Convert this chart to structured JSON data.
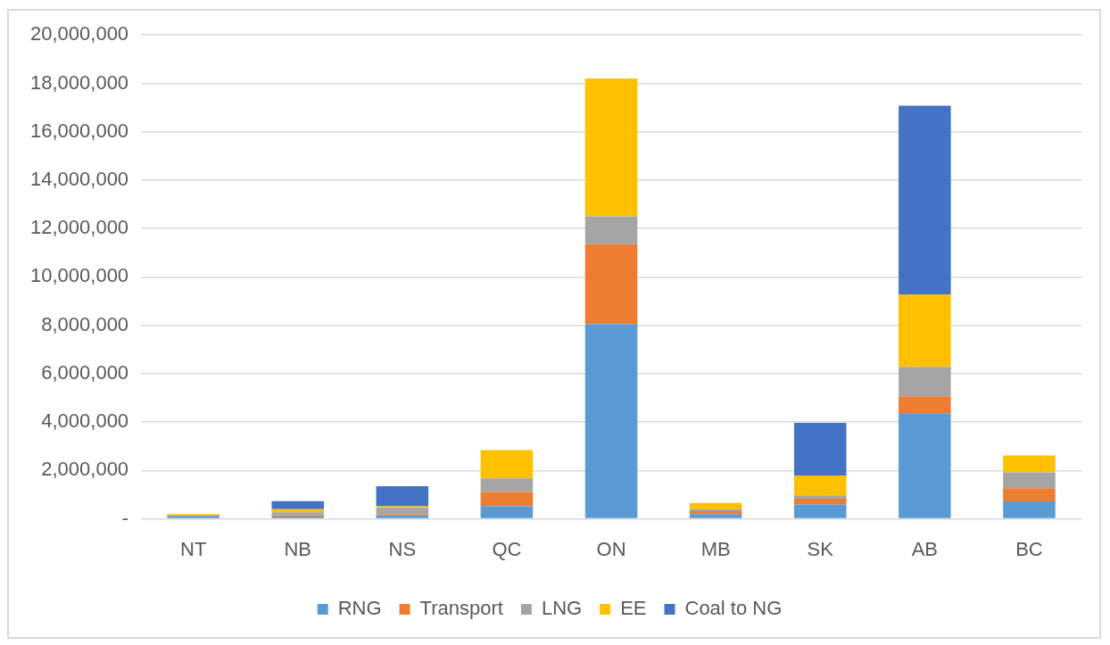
{
  "chart_data": {
    "type": "bar",
    "stacked": true,
    "categories": [
      "NT",
      "NB",
      "NS",
      "QC",
      "ON",
      "MB",
      "SK",
      "AB",
      "BC"
    ],
    "series": [
      {
        "name": "RNG",
        "color": "#5b9bd5",
        "values": [
          120000.0,
          100000.0,
          140000.0,
          530000.0,
          8050000.0,
          200000.0,
          590000.0,
          4360000.0,
          720000.0
        ]
      },
      {
        "name": "Transport",
        "color": "#ed7d31",
        "values": [
          0,
          50000.0,
          60000.0,
          580000.0,
          3300000.0,
          120000.0,
          240000.0,
          700000.0,
          550000.0
        ]
      },
      {
        "name": "LNG",
        "color": "#a5a5a5",
        "values": [
          0,
          120000.0,
          260000.0,
          560000.0,
          1150000.0,
          80000.0,
          140000.0,
          1220000.0,
          650000.0
        ]
      },
      {
        "name": "EE",
        "color": "#ffc000",
        "values": [
          80000.0,
          130000.0,
          60000.0,
          1170000.0,
          5700000.0,
          260000.0,
          820000.0,
          3000000.0,
          700000.0
        ]
      },
      {
        "name": "Coal to NG",
        "color": "#4472c4",
        "values": [
          0,
          330000.0,
          830000.0,
          0,
          0,
          0,
          2180000.0,
          7800000.0,
          0
        ]
      }
    ],
    "ylim": [
      0,
      20000000
    ],
    "yticks": [
      {
        "value": 0,
        "label": "-"
      },
      {
        "value": 2000000,
        "label": "2,000,000"
      },
      {
        "value": 4000000,
        "label": "4,000,000"
      },
      {
        "value": 6000000,
        "label": "6,000,000"
      },
      {
        "value": 8000000,
        "label": "8,000,000"
      },
      {
        "value": 10000000,
        "label": "10,000,000"
      },
      {
        "value": 12000000,
        "label": "12,000,000"
      },
      {
        "value": 14000000,
        "label": "14,000,000"
      },
      {
        "value": 16000000,
        "label": "16,000,000"
      },
      {
        "value": 18000000,
        "label": "18,000,000"
      },
      {
        "value": 20000000,
        "label": "20,000,000"
      }
    ],
    "grid": "y",
    "legend": "bottom"
  }
}
